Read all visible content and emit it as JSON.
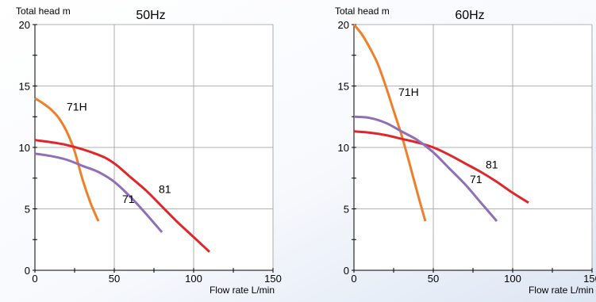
{
  "chart_data": [
    {
      "type": "line",
      "title": "50Hz",
      "ylabel": "Total head  m",
      "xlabel": "Flow rate  L/min",
      "xlim": [
        0,
        150
      ],
      "ylim": [
        0,
        20
      ],
      "xticks": [
        "0",
        "50",
        "100",
        "150"
      ],
      "yticks": [
        "0",
        "5",
        "10",
        "15",
        "20"
      ],
      "grid": true,
      "series": [
        {
          "name": "71H",
          "color": "#f07f2a",
          "label_at": [
            20,
            13
          ],
          "x": [
            0,
            5,
            10,
            15,
            20,
            25,
            30,
            35,
            40
          ],
          "y": [
            14.0,
            13.6,
            13.1,
            12.4,
            11.3,
            9.7,
            7.4,
            5.5,
            4.0
          ]
        },
        {
          "name": "81",
          "color": "#e0262b",
          "label_at": [
            78,
            6.3
          ],
          "x": [
            0,
            20,
            40,
            50,
            60,
            70,
            80,
            90,
            100,
            110
          ],
          "y": [
            10.6,
            10.2,
            9.4,
            8.7,
            7.6,
            6.5,
            5.2,
            3.9,
            2.7,
            1.5
          ]
        },
        {
          "name": "71",
          "color": "#8e6fb8",
          "label_at": [
            55,
            5.5
          ],
          "x": [
            0,
            10,
            20,
            30,
            40,
            50,
            60,
            70,
            80
          ],
          "y": [
            9.5,
            9.3,
            9.0,
            8.5,
            8.0,
            7.2,
            6.0,
            4.6,
            3.1
          ]
        }
      ]
    },
    {
      "type": "line",
      "title": "60Hz",
      "ylabel": "Total head  m",
      "xlabel": "Flow rate  L/min",
      "xlim": [
        0,
        150
      ],
      "ylim": [
        0,
        20
      ],
      "xticks": [
        "0",
        "50",
        "100",
        "150"
      ],
      "yticks": [
        "0",
        "5",
        "10",
        "15",
        "20"
      ],
      "grid": true,
      "series": [
        {
          "name": "71H",
          "color": "#f07f2a",
          "label_at": [
            28,
            14.2
          ],
          "x": [
            0,
            5,
            10,
            15,
            20,
            25,
            30,
            35,
            40,
            45
          ],
          "y": [
            20.0,
            19.2,
            18.1,
            16.8,
            15.0,
            13.0,
            11.0,
            8.7,
            6.3,
            4.0
          ]
        },
        {
          "name": "81",
          "color": "#e0262b",
          "label_at": [
            83,
            8.3
          ],
          "x": [
            0,
            10,
            20,
            30,
            40,
            50,
            60,
            70,
            80,
            90,
            100,
            110
          ],
          "y": [
            11.3,
            11.2,
            11.0,
            10.7,
            10.4,
            10.0,
            9.4,
            8.7,
            8.0,
            7.2,
            6.3,
            5.5
          ]
        },
        {
          "name": "71",
          "color": "#8e6fb8",
          "label_at": [
            73,
            7.1
          ],
          "x": [
            0,
            10,
            20,
            30,
            40,
            50,
            60,
            70,
            80,
            90
          ],
          "y": [
            12.5,
            12.4,
            12.0,
            11.3,
            10.6,
            9.6,
            8.3,
            7.0,
            5.5,
            4.0
          ]
        }
      ]
    }
  ]
}
